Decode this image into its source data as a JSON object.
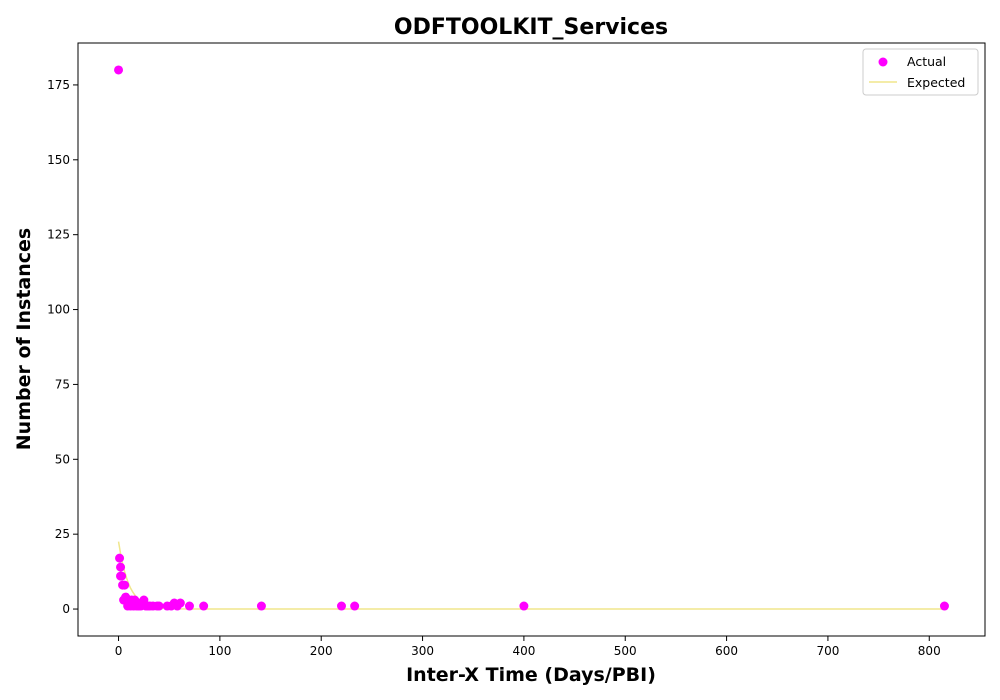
{
  "chart_data": {
    "type": "scatter",
    "title": "ODFTOOLKIT_Services",
    "xlabel": "Inter-X Time (Days/PBI)",
    "ylabel": "Number of Instances",
    "xlim": [
      -40,
      855
    ],
    "ylim": [
      -9,
      189
    ],
    "xticks": [
      0,
      100,
      200,
      300,
      400,
      500,
      600,
      700,
      800
    ],
    "yticks": [
      0,
      25,
      50,
      75,
      100,
      125,
      150,
      175
    ],
    "grid": false,
    "legend_position": "top-right",
    "series": [
      {
        "name": "Actual",
        "kind": "scatter",
        "color": "#ff00ff",
        "points": [
          [
            0,
            180
          ],
          [
            1,
            17
          ],
          [
            2,
            14
          ],
          [
            2,
            11
          ],
          [
            3,
            11
          ],
          [
            4,
            8
          ],
          [
            6,
            8
          ],
          [
            5,
            3
          ],
          [
            7,
            4
          ],
          [
            8,
            3
          ],
          [
            9,
            1
          ],
          [
            10,
            3
          ],
          [
            11,
            2
          ],
          [
            12,
            1
          ],
          [
            13,
            3
          ],
          [
            14,
            2
          ],
          [
            15,
            1
          ],
          [
            16,
            3
          ],
          [
            17,
            2
          ],
          [
            18,
            1
          ],
          [
            19,
            2
          ],
          [
            20,
            1
          ],
          [
            22,
            1
          ],
          [
            24,
            2
          ],
          [
            25,
            3
          ],
          [
            27,
            1
          ],
          [
            29,
            1
          ],
          [
            31,
            1
          ],
          [
            34,
            1
          ],
          [
            38,
            1
          ],
          [
            40,
            1
          ],
          [
            48,
            1
          ],
          [
            52,
            1
          ],
          [
            55,
            2
          ],
          [
            58,
            1
          ],
          [
            61,
            2
          ],
          [
            70,
            1
          ],
          [
            84,
            1
          ],
          [
            141,
            1
          ],
          [
            220,
            1
          ],
          [
            233,
            1
          ],
          [
            400,
            1
          ],
          [
            815,
            1
          ]
        ]
      },
      {
        "name": "Expected",
        "kind": "line",
        "color": "#f0e68c",
        "points": [
          [
            0,
            22.5
          ],
          [
            2,
            18.5
          ],
          [
            4,
            15.2
          ],
          [
            6,
            12.5
          ],
          [
            8,
            10.3
          ],
          [
            10,
            8.4
          ],
          [
            12,
            6.9
          ],
          [
            14,
            5.7
          ],
          [
            16,
            4.7
          ],
          [
            18,
            3.8
          ],
          [
            20,
            3.2
          ],
          [
            25,
            1.9
          ],
          [
            30,
            1.2
          ],
          [
            35,
            0.7
          ],
          [
            40,
            0.4
          ],
          [
            50,
            0.15
          ],
          [
            60,
            0.05
          ],
          [
            80,
            0
          ],
          [
            815,
            0
          ]
        ]
      }
    ]
  }
}
